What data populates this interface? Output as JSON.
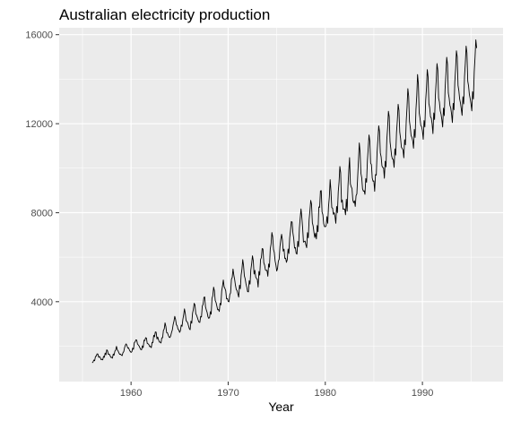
{
  "chart_data": {
    "type": "line",
    "title": "Australian electricity production",
    "xlabel": "Year",
    "ylabel": "",
    "xlim": [
      1952.6,
      1998.3
    ],
    "ylim": [
      410,
      16310
    ],
    "x_ticks": [
      1960,
      1970,
      1980,
      1990
    ],
    "x_tick_labels": [
      "1960",
      "1970",
      "1980",
      "1990"
    ],
    "y_ticks": [
      4000,
      8000,
      12000,
      16000
    ],
    "y_tick_labels": [
      "4000",
      "8000",
      "12000",
      "16000"
    ],
    "x_minor_ticks": [
      1955,
      1965,
      1975,
      1985,
      1995
    ],
    "y_minor_ticks": [
      2000,
      6000,
      10000,
      14000
    ],
    "frequency": 12,
    "start": "1956-01",
    "end": "1995-08",
    "grid": true,
    "legend": "none",
    "colors": {
      "panel_background": "#ebebeb",
      "grid_line": "#ffffff",
      "series_line": "#000000",
      "tick_label": "#4d4d4d",
      "tick_mark": "#333333"
    },
    "series": [
      {
        "values": [
          1254,
          1290,
          1379,
          1346,
          1535,
          1555,
          1655,
          1651,
          1500,
          1538,
          1486,
          1394,
          1409,
          1387,
          1543,
          1502,
          1693,
          1616,
          1841,
          1787,
          1631,
          1649,
          1586,
          1500,
          1497,
          1463,
          1648,
          1595,
          1777,
          1824,
          1994,
          1835,
          1787,
          1699,
          1633,
          1645,
          1597,
          1577,
          1709,
          1756,
          1936,
          2052,
          2105,
          2016,
          1914,
          1925,
          1824,
          1765,
          1721,
          1752,
          1914,
          1857,
          2159,
          2195,
          2287,
          2276,
          2096,
          2055,
          2004,
          1924,
          1851,
          1839,
          2019,
          1937,
          2270,
          2251,
          2382,
          2364,
          2129,
          2110,
          2072,
          1980,
          1995,
          1932,
          2171,
          2162,
          2489,
          2424,
          2641,
          2630,
          2324,
          2412,
          2284,
          2186,
          2184,
          2144,
          2379,
          2383,
          2717,
          2774,
          3051,
          2891,
          2613,
          2600,
          2493,
          2410,
          2390,
          2463,
          2616,
          2734,
          2970,
          3125,
          3342,
          3207,
          2964,
          2919,
          2764,
          2732,
          2622,
          2698,
          2950,
          2895,
          3200,
          3408,
          3679,
          3473,
          3154,
          3107,
          3052,
          2918,
          2786,
          2739,
          3125,
          3033,
          3486,
          3661,
          3927,
          3851,
          3456,
          3390,
          3280,
          3166,
          3080,
          3069,
          3340,
          3310,
          3798,
          3883,
          4191,
          4213,
          3766,
          3628,
          3520,
          3322,
          3250,
          3287,
          3552,
          3440,
          4153,
          4265,
          4655,
          4492,
          4051,
          3967,
          3807,
          3639,
          3647,
          3560,
          3929,
          3858,
          4485,
          4697,
          4977,
          4675,
          4596,
          4491,
          4127,
          4144,
          4014,
          3994,
          4320,
          4400,
          5002,
          5091,
          5471,
          5193,
          4997,
          4737,
          4546,
          4498,
          4350,
          4206,
          4743,
          4582,
          5191,
          5457,
          5891,
          5618,
          5158,
          5030,
          4800,
          4654,
          4453,
          4440,
          4945,
          4788,
          5425,
          5706,
          6061,
          5846,
          5242,
          5408,
          5114,
          5042,
          5008,
          4657,
          5359,
          5193,
          5891,
          5980,
          6390,
          6366,
          5756,
          5640,
          5429,
          5398,
          5413,
          5141,
          5695,
          5554,
          6369,
          6592,
          7107,
          6917,
          6353,
          6205,
          5830,
          5646,
          5379,
          5489,
          5824,
          5907,
          6482,
          6795,
          7028,
          6776,
          6274,
          6362,
          5940,
          5958,
          5769,
          5887,
          6367,
          6165,
          6868,
          7201,
          7601,
          7581,
          7090,
          6841,
          6408,
          6435,
          6176,
          6138,
          6717,
          6470,
          7312,
          7763,
          8171,
          7788,
          7311,
          6679,
          6704,
          6724,
          6552,
          6427,
          7105,
          6869,
          7683,
          8082,
          8555,
          8386,
          7553,
          7398,
          7112,
          6886,
          7077,
          6820,
          7426,
          7143,
          8261,
          8240,
          8977,
          8991,
          8026,
          7911,
          7510,
          7381,
          7366,
          7414,
          7824,
          7524,
          8279,
          8707,
          9486,
          8973,
          8231,
          8206,
          7927,
          7999,
          7834,
          7521,
          8284,
          7999,
          8940,
          9381,
          10078,
          9796,
          8471,
          8572,
          8150,
          8168,
          8166,
          7903,
          8606,
          8071,
          9178,
          9873,
          10476,
          9296,
          9162,
          9086,
          8566,
          8446,
          8535,
          8280,
          8767,
          8847,
          9599,
          10364,
          11135,
          10712,
          9773,
          9574,
          9077,
          8967,
          8987,
          8824,
          9534,
          9365,
          10323,
          10886,
          11492,
          11213,
          10229,
          10159,
          9555,
          9412,
          9430,
          8958,
          9712,
          9686,
          10717,
          11280,
          11904,
          11643,
          10682,
          10508,
          10105,
          10028,
          10018,
          9546,
          10311,
          10060,
          11282,
          11814,
          12559,
          12311,
          11184,
          10866,
          10542,
          10408,
          10395,
          10035,
          10867,
          10589,
          11607,
          12152,
          12871,
          12598,
          11621,
          11340,
          10947,
          10883,
          10825,
          10465,
          11280,
          11048,
          12122,
          12756,
          13577,
          13236,
          12109,
          11836,
          11467,
          11381,
          11230,
          10896,
          11744,
          11380,
          12626,
          13245,
          14210,
          13782,
          12496,
          12251,
          11927,
          11861,
          11677,
          11296,
          12141,
          11849,
          13022,
          13585,
          14432,
          14104,
          12904,
          12713,
          12314,
          12245,
          11980,
          11553,
          12482,
          12185,
          13269,
          13915,
          14700,
          14412,
          13147,
          12972,
          12577,
          12433,
          12180,
          11850,
          12699,
          12363,
          13560,
          14219,
          14986,
          14668,
          13378,
          13156,
          12818,
          12706,
          12436,
          12050,
          12917,
          12624,
          13864,
          14463,
          15277,
          14999,
          13723,
          13482,
          13109,
          12929,
          12671,
          12373,
          13211,
          12887,
          14107,
          14726,
          15485,
          15186,
          13910,
          13696,
          13314,
          13126,
          12890,
          12574,
          13440,
          13109,
          14334,
          14979,
          15768,
          15396
        ]
      }
    ]
  }
}
